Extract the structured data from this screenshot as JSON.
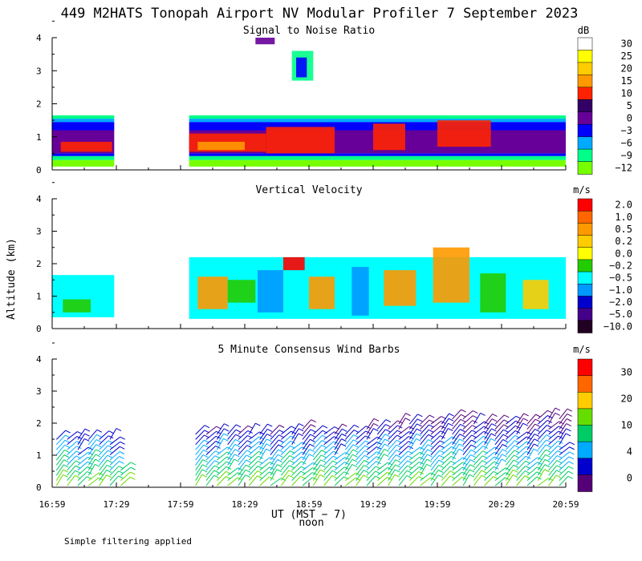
{
  "title": "449 M2HATS Tonopah Airport NV Modular Profiler  7 September 2023",
  "ylabel": "Altitude (km)",
  "x_axis": {
    "label": "UT  (MST − 7)",
    "sublabel": "noon",
    "tick_labels": [
      "16:59",
      "17:29",
      "17:59",
      "18:29",
      "18:59",
      "19:29",
      "19:59",
      "20:29",
      "20:59"
    ],
    "tick_minutes": [
      0,
      30,
      60,
      90,
      120,
      150,
      180,
      210,
      240
    ],
    "range_minutes": [
      0,
      240
    ]
  },
  "footnote": "Simple filtering applied",
  "chart_data": [
    {
      "type": "heatmap",
      "title": "Signal to Noise Ratio",
      "unit": "dB",
      "ylim": [
        0,
        4
      ],
      "y_ticks": [
        "0",
        "1",
        "2",
        "3",
        "4"
      ],
      "colorbar": {
        "labels": [
          "30",
          "25",
          "20",
          "15",
          "10",
          "5",
          "0",
          "−3",
          "−6",
          "−9",
          "−12"
        ],
        "colors": [
          "#ffffff",
          "#ffff00",
          "#ffcc00",
          "#ff9900",
          "#ff2200",
          "#330066",
          "#660099",
          "#0000ff",
          "#00aaff",
          "#00ff88",
          "#77ff00"
        ]
      },
      "bands": [
        {
          "y": [
            0.1,
            0.3
          ],
          "color": "#77ff00"
        },
        {
          "y": [
            0.3,
            0.42
          ],
          "color": "#00ff88"
        },
        {
          "y": [
            0.42,
            0.5
          ],
          "color": "#0000ff"
        },
        {
          "y": [
            0.5,
            1.2
          ],
          "color": "#660099"
        },
        {
          "y": [
            1.2,
            1.45
          ],
          "color": "#0000ff"
        },
        {
          "y": [
            1.45,
            1.55
          ],
          "color": "#00aaff"
        },
        {
          "y": [
            1.55,
            1.65
          ],
          "color": "#00ff88"
        }
      ],
      "segments": [
        [
          0,
          29
        ],
        [
          64,
          240
        ]
      ],
      "patches": [
        {
          "x": [
            4,
            28
          ],
          "y": [
            0.55,
            0.85
          ],
          "color": "#ff2200"
        },
        {
          "x": [
            64,
            100
          ],
          "y": [
            0.55,
            1.1
          ],
          "color": "#ff2200"
        },
        {
          "x": [
            68,
            90
          ],
          "y": [
            0.6,
            0.85
          ],
          "color": "#ff9900"
        },
        {
          "x": [
            100,
            132
          ],
          "y": [
            0.5,
            1.3
          ],
          "color": "#ff2200"
        },
        {
          "x": [
            150,
            165
          ],
          "y": [
            0.6,
            1.4
          ],
          "color": "#ff2200"
        },
        {
          "x": [
            180,
            205
          ],
          "y": [
            0.7,
            1.5
          ],
          "color": "#ff2200"
        },
        {
          "x": [
            112,
            122
          ],
          "y": [
            2.7,
            3.6
          ],
          "color": "#00ff88"
        },
        {
          "x": [
            114,
            119
          ],
          "y": [
            2.8,
            3.4
          ],
          "color": "#0000ff"
        },
        {
          "x": [
            95,
            104
          ],
          "y": [
            3.8,
            4.0
          ],
          "color": "#660099"
        }
      ]
    },
    {
      "type": "heatmap",
      "title": "Vertical Velocity",
      "unit": "m/s",
      "ylim": [
        0,
        4
      ],
      "y_ticks": [
        "0",
        "1",
        "2",
        "3",
        "4"
      ],
      "colorbar": {
        "labels": [
          "2.0",
          "1.0",
          "0.5",
          "0.2",
          "0.0",
          "−0.2",
          "−0.5",
          "−1.0",
          "−2.0",
          "−5.0",
          "−10.0"
        ],
        "colors": [
          "#ff0000",
          "#ff6600",
          "#ff9900",
          "#ffcc00",
          "#ffff00",
          "#22cc00",
          "#00ffff",
          "#0099ff",
          "#0000cc",
          "#440088",
          "#220022"
        ]
      },
      "base_segments": [
        {
          "x": [
            0,
            29
          ],
          "y": [
            0.35,
            1.65
          ],
          "color": "#00ffff"
        },
        {
          "x": [
            64,
            240
          ],
          "y": [
            0.3,
            2.2
          ],
          "color": "#00ffff"
        }
      ],
      "patches": [
        {
          "x": [
            5,
            18
          ],
          "y": [
            0.5,
            0.9
          ],
          "color": "#22cc00"
        },
        {
          "x": [
            68,
            82
          ],
          "y": [
            0.6,
            1.6
          ],
          "color": "#ff9900"
        },
        {
          "x": [
            82,
            95
          ],
          "y": [
            0.8,
            1.5
          ],
          "color": "#22cc00"
        },
        {
          "x": [
            96,
            108
          ],
          "y": [
            0.5,
            1.8
          ],
          "color": "#0099ff"
        },
        {
          "x": [
            108,
            118
          ],
          "y": [
            1.8,
            2.2
          ],
          "color": "#ff0000"
        },
        {
          "x": [
            120,
            132
          ],
          "y": [
            0.6,
            1.6
          ],
          "color": "#ff9900"
        },
        {
          "x": [
            140,
            148
          ],
          "y": [
            0.4,
            1.9
          ],
          "color": "#0099ff"
        },
        {
          "x": [
            155,
            170
          ],
          "y": [
            0.7,
            1.8
          ],
          "color": "#ff9900"
        },
        {
          "x": [
            178,
            195
          ],
          "y": [
            0.8,
            2.5
          ],
          "color": "#ff9900"
        },
        {
          "x": [
            200,
            212
          ],
          "y": [
            0.5,
            1.7
          ],
          "color": "#22cc00"
        },
        {
          "x": [
            220,
            232
          ],
          "y": [
            0.6,
            1.5
          ],
          "color": "#ffcc00"
        }
      ]
    },
    {
      "type": "wind_barbs",
      "title": "5 Minute Consensus Wind Barbs",
      "unit": "m/s",
      "ylim": [
        0,
        4
      ],
      "y_ticks": [
        "0",
        "1",
        "2",
        "3",
        "4"
      ],
      "colorbar": {
        "labels": [
          "30",
          "20",
          "10",
          "4",
          "0"
        ],
        "colors": [
          "#ff0000",
          "#ff6600",
          "#ffcc00",
          "#66dd00",
          "#00cc66",
          "#00aaff",
          "#0000cc",
          "#550077"
        ]
      },
      "barb_columns_minutes": [
        2,
        7,
        12,
        17,
        22,
        27,
        32,
        67,
        72,
        77,
        82,
        87,
        92,
        97,
        102,
        107,
        112,
        117,
        122,
        127,
        132,
        137,
        142,
        147,
        152,
        157,
        162,
        167,
        172,
        177,
        182,
        187,
        192,
        197,
        202,
        207,
        212,
        217,
        222,
        227,
        232,
        237
      ],
      "barb_top_km": [
        1.5,
        1.5,
        1.5,
        1.5,
        1.5,
        1.5,
        0.6,
        1.7,
        1.7,
        1.8,
        1.8,
        1.8,
        1.8,
        1.8,
        1.7,
        1.7,
        1.8,
        1.9,
        1.8,
        1.8,
        1.8,
        1.8,
        1.8,
        1.9,
        1.9,
        1.9,
        2.0,
        2.0,
        2.1,
        2.1,
        2.1,
        2.2,
        2.2,
        2.1,
        2.1,
        2.0,
        2.1,
        2.1,
        2.1,
        2.2,
        2.2,
        2.2
      ]
    }
  ]
}
